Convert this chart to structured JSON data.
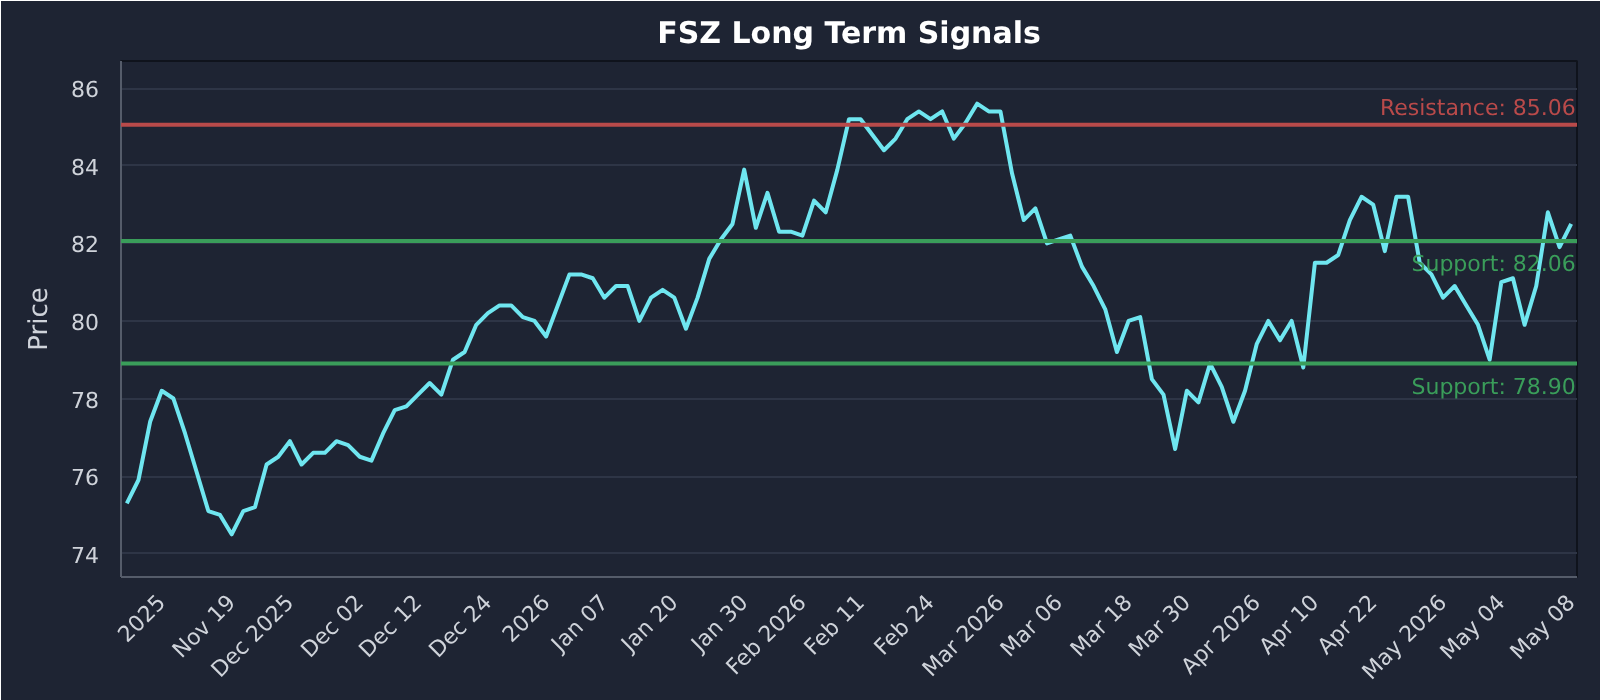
{
  "chart_data": {
    "type": "line",
    "title": "FSZ Long Term Signals",
    "ylabel": "Price",
    "categories": [
      null,
      null,
      null,
      "2025",
      null,
      null,
      null,
      null,
      null,
      "Nov 19",
      null,
      null,
      null,
      null,
      "Dec 2025",
      null,
      null,
      null,
      null,
      null,
      "Dec 02",
      null,
      null,
      null,
      null,
      "Dec 12",
      null,
      null,
      null,
      null,
      null,
      "Dec 24",
      null,
      null,
      null,
      null,
      "2026",
      null,
      null,
      null,
      null,
      "Jan 07",
      null,
      null,
      null,
      null,
      null,
      "Jan 20",
      null,
      null,
      null,
      null,
      null,
      "Jan 30",
      null,
      null,
      null,
      null,
      "Feb 2026",
      null,
      null,
      null,
      null,
      "Feb 11",
      null,
      null,
      null,
      null,
      null,
      "Feb 24",
      null,
      null,
      null,
      null,
      null,
      "Mar 2026",
      null,
      null,
      null,
      null,
      "Mar 06",
      null,
      null,
      null,
      null,
      null,
      "Mar 18",
      null,
      null,
      null,
      null,
      "Mar 30",
      null,
      null,
      null,
      null,
      null,
      "Apr 2026",
      null,
      null,
      null,
      null,
      "Apr 10",
      null,
      null,
      null,
      null,
      "Apr 22",
      null,
      null,
      null,
      null,
      null,
      "May 2026",
      null,
      null,
      null,
      null,
      "May 04",
      null,
      null,
      null,
      null,
      null,
      "May 08"
    ],
    "series": [
      {
        "color": "#6fe6f0",
        "values": [
          75.3,
          75.9,
          77.4,
          78.2,
          78.0,
          77.1,
          76.1,
          75.1,
          75.0,
          74.5,
          75.1,
          75.2,
          76.3,
          76.5,
          76.9,
          76.3,
          76.6,
          76.6,
          76.9,
          76.8,
          76.5,
          76.4,
          77.1,
          77.7,
          77.8,
          78.1,
          78.4,
          78.1,
          79.0,
          79.2,
          79.9,
          80.2,
          80.4,
          80.4,
          80.1,
          80.0,
          79.6,
          80.4,
          81.2,
          81.2,
          81.1,
          80.6,
          80.9,
          80.9,
          80.0,
          80.6,
          80.8,
          80.6,
          79.8,
          80.6,
          81.6,
          82.1,
          82.5,
          83.9,
          82.4,
          83.3,
          82.3,
          82.3,
          82.2,
          83.1,
          82.8,
          83.9,
          85.2,
          85.2,
          84.8,
          84.4,
          84.7,
          85.2,
          85.4,
          85.2,
          85.4,
          84.7,
          85.1,
          85.6,
          85.4,
          85.4,
          83.8,
          82.6,
          82.9,
          82.0,
          82.1,
          82.2,
          81.4,
          80.9,
          80.3,
          79.2,
          80.0,
          80.1,
          78.5,
          78.1,
          76.7,
          78.2,
          77.9,
          78.9,
          78.3,
          77.4,
          78.2,
          79.4,
          80.0,
          79.5,
          80.0,
          78.8,
          81.5,
          81.5,
          81.7,
          82.6,
          83.2,
          83.0,
          81.8,
          83.2,
          83.2,
          81.5,
          81.2,
          80.6,
          80.9,
          80.4,
          79.9,
          79.0,
          81.0,
          81.1,
          79.9,
          80.9,
          82.8,
          81.9,
          82.5
        ]
      }
    ],
    "ylim": [
      73.4,
      86.7
    ],
    "yticks": [
      74,
      76,
      78,
      80,
      82,
      84,
      86
    ],
    "grid": "y",
    "marker": "none",
    "line_style": "solid",
    "ref_lines": [
      {
        "axis": "y",
        "value": 85.06,
        "label": "Resistance: 85.06",
        "color": "#b94a4a"
      },
      {
        "axis": "y",
        "value": 82.06,
        "label": "Support: 82.06",
        "color": "#3a9d5a"
      },
      {
        "axis": "y",
        "value": 78.9,
        "label": "Support: 78.90",
        "color": "#3a9d5a"
      }
    ]
  }
}
